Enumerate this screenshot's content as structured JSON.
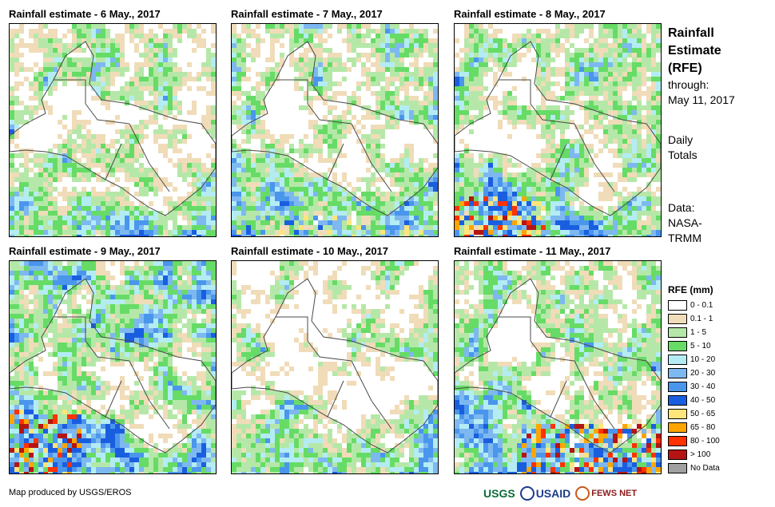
{
  "panels": [
    {
      "title": "Rainfall estimate - 6 May., 2017",
      "seed": 11,
      "bias": -0.05,
      "heavy_zone": "none"
    },
    {
      "title": "Rainfall estimate - 7 May., 2017",
      "seed": 23,
      "bias": -0.02,
      "heavy_zone": "south-light"
    },
    {
      "title": "Rainfall estimate - 8 May., 2017",
      "seed": 37,
      "bias": 0.0,
      "heavy_zone": "southwest"
    },
    {
      "title": "Rainfall estimate - 9 May., 2017",
      "seed": 41,
      "bias": 0.08,
      "heavy_zone": "west"
    },
    {
      "title": "Rainfall estimate - 10 May., 2017",
      "seed": 53,
      "bias": -0.08,
      "heavy_zone": "none"
    },
    {
      "title": "Rainfall estimate - 11 May., 2017",
      "seed": 67,
      "bias": 0.02,
      "heavy_zone": "southeast"
    }
  ],
  "sidebar": {
    "title_lines": [
      "Rainfall",
      "Estimate",
      "(RFE)"
    ],
    "through_lines": [
      "through:",
      "May 11, 2017"
    ],
    "totals_lines": [
      "Daily",
      "Totals"
    ],
    "data_lines": [
      "Data:",
      "NASA-",
      "TRMM"
    ]
  },
  "legend": {
    "title": "RFE (mm)",
    "items": [
      {
        "label": "0 - 0.1",
        "color": "#ffffff"
      },
      {
        "label": "0.1 - 1",
        "color": "#f0dcb8"
      },
      {
        "label": "1 - 5",
        "color": "#b5e8a8"
      },
      {
        "label": "5 - 10",
        "color": "#66dc66"
      },
      {
        "label": "10 - 20",
        "color": "#b4ecf4"
      },
      {
        "label": "20 - 30",
        "color": "#7eb8f0"
      },
      {
        "label": "30 - 40",
        "color": "#4a96ec"
      },
      {
        "label": "40 - 50",
        "color": "#1a5ee0"
      },
      {
        "label": "50 - 65",
        "color": "#ffe57a"
      },
      {
        "label": "65 - 80",
        "color": "#ffa500"
      },
      {
        "label": "80 - 100",
        "color": "#ff3200"
      },
      {
        "label": "> 100",
        "color": "#b41414"
      },
      {
        "label": "No Data",
        "color": "#a0a0a0"
      }
    ]
  },
  "footer": {
    "credit": "Map produced by USGS/EROS"
  },
  "logos": {
    "usgs": "USGS",
    "usaid": "USAID",
    "fews": "FEWS NET"
  }
}
